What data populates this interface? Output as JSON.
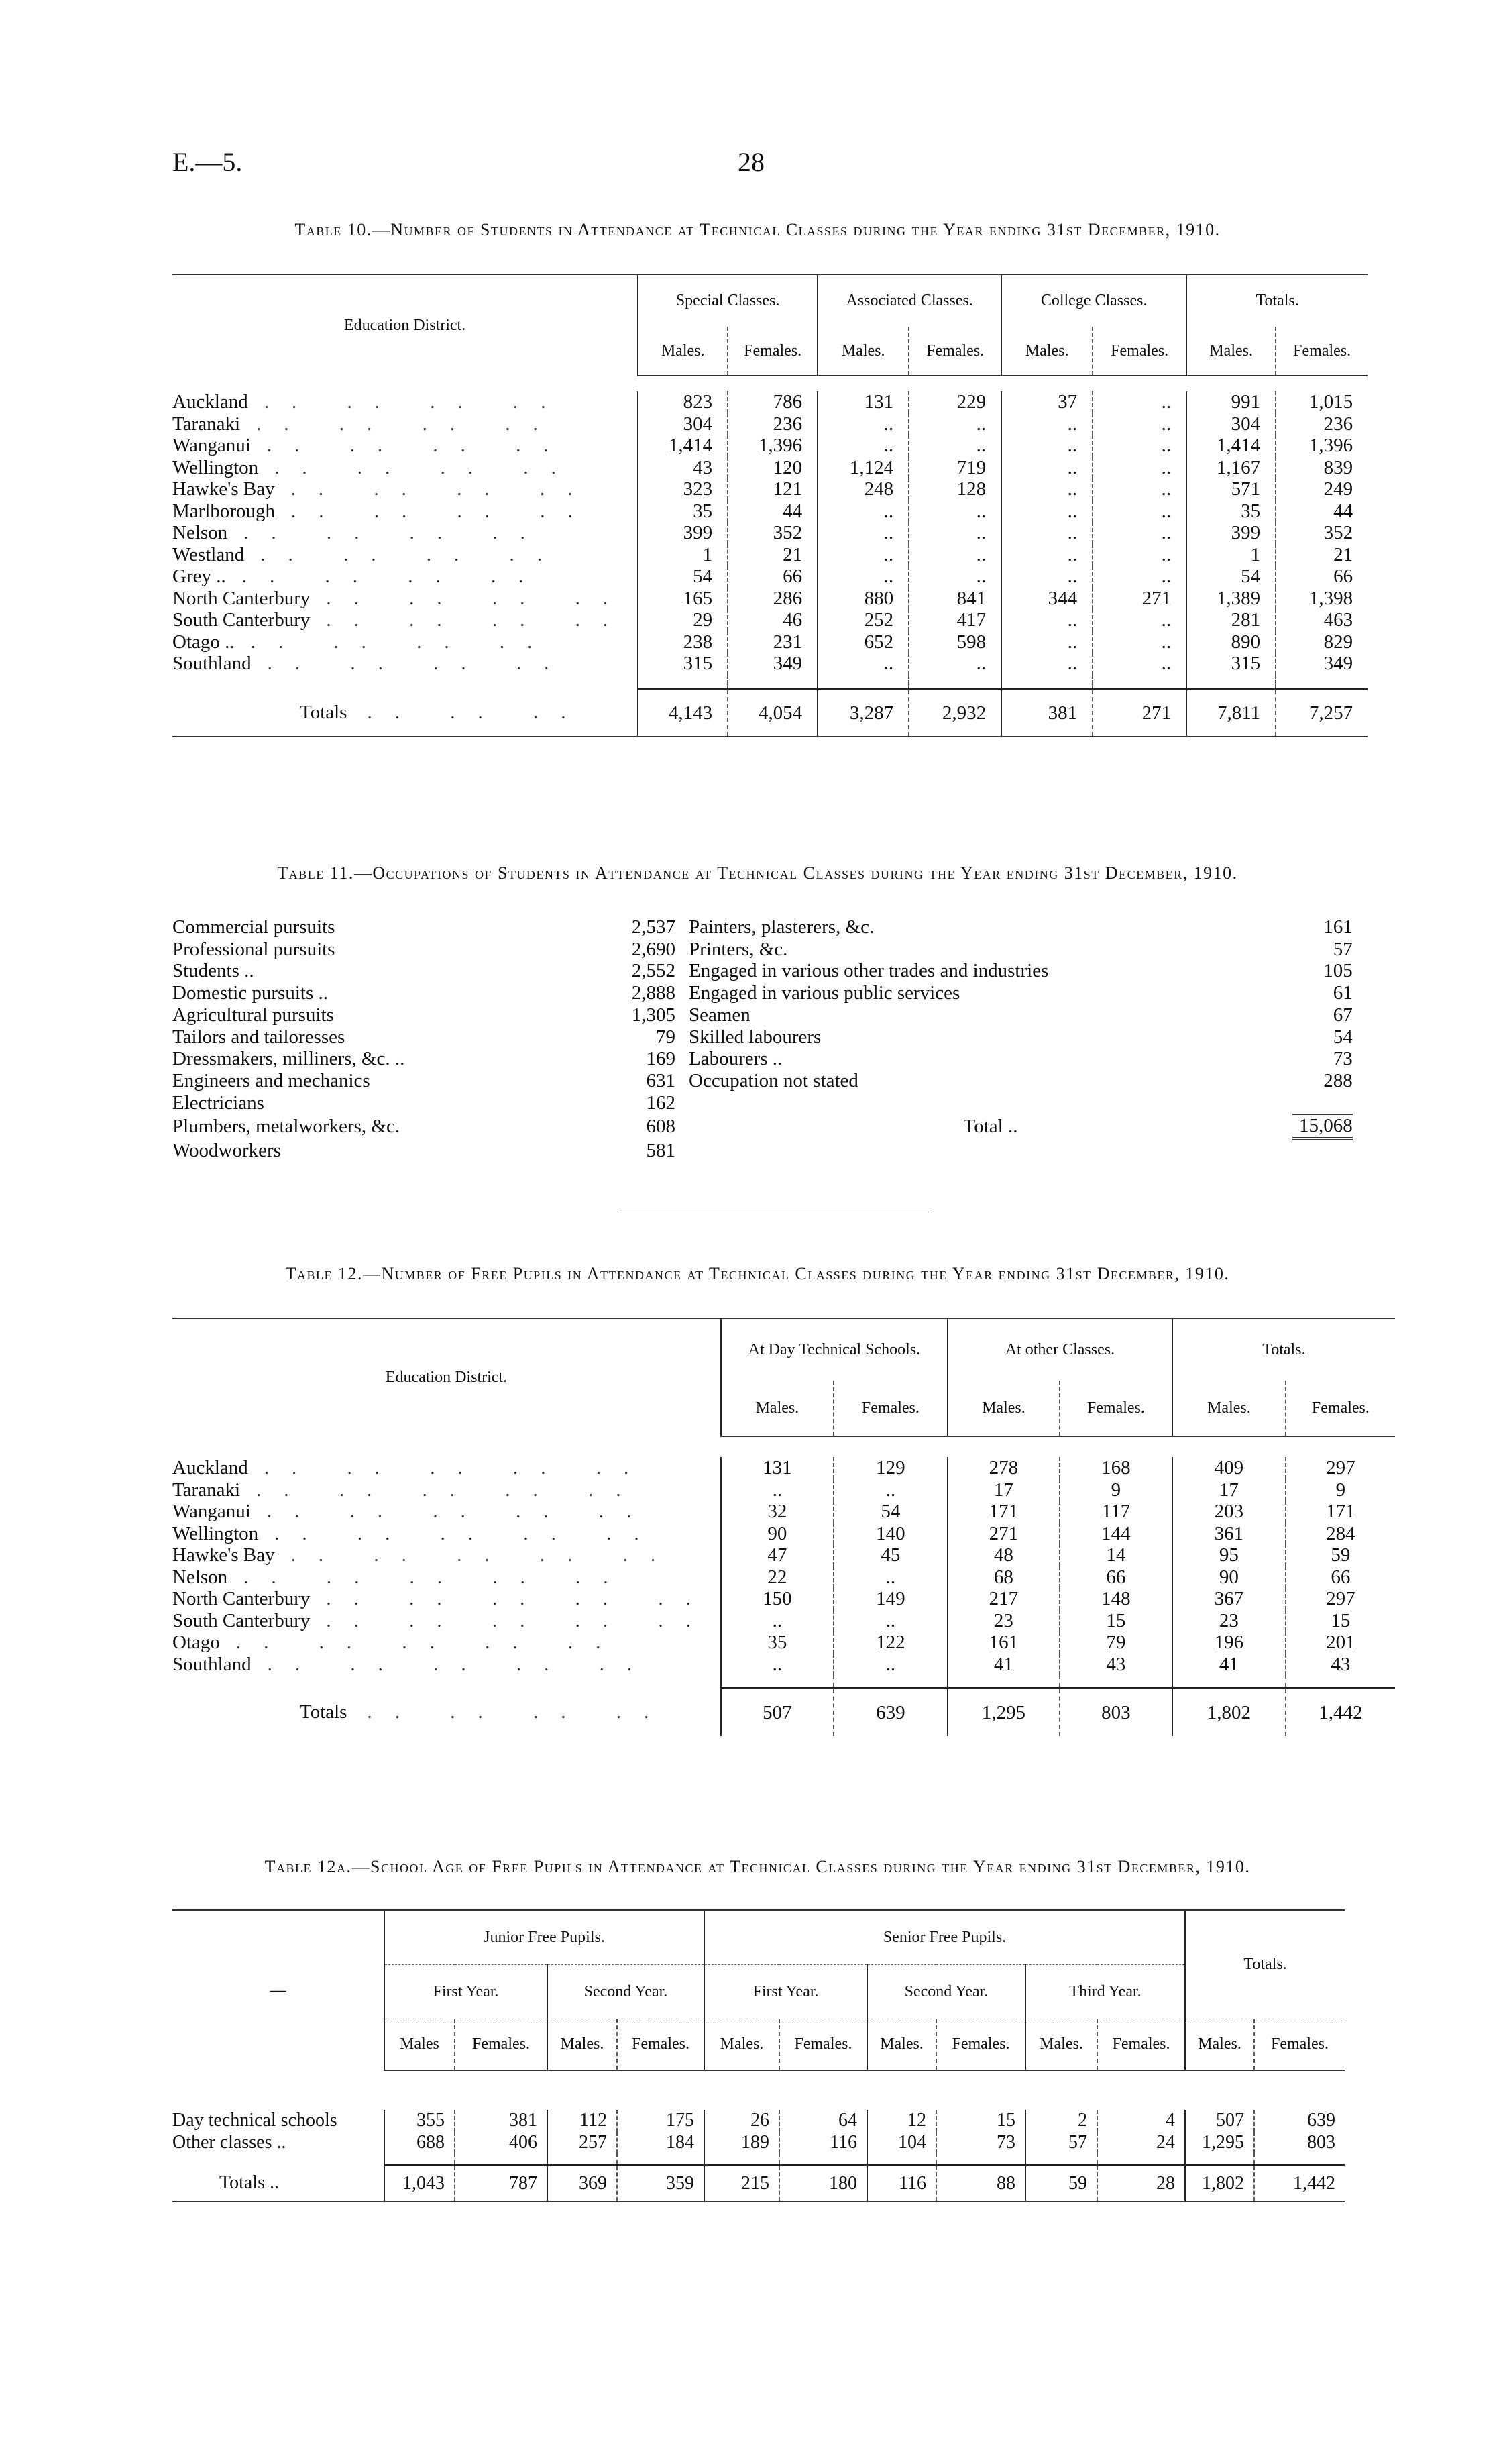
{
  "page": {
    "ref": "E.—5.",
    "number": "28"
  },
  "table10": {
    "title": "Table 10.—Number of Students in Attendance at Technical Classes during the Year ending 31st December, 1910.",
    "stub": "Education District.",
    "groups": [
      "Special Classes.",
      "Associated Classes.",
      "College Classes.",
      "Totals."
    ],
    "sub": [
      "Males.",
      "Females."
    ],
    "leader": ".. .. .. ..",
    "rows": [
      {
        "label": "Auckland",
        "values": [
          "823",
          "786",
          "131",
          "229",
          "37",
          "..",
          "991",
          "1,015"
        ]
      },
      {
        "label": "Taranaki",
        "values": [
          "304",
          "236",
          "..",
          "..",
          "..",
          "..",
          "304",
          "236"
        ]
      },
      {
        "label": "Wanganui",
        "values": [
          "1,414",
          "1,396",
          "..",
          "..",
          "..",
          "..",
          "1,414",
          "1,396"
        ]
      },
      {
        "label": "Wellington",
        "values": [
          "43",
          "120",
          "1,124",
          "719",
          "..",
          "..",
          "1,167",
          "839"
        ]
      },
      {
        "label": "Hawke's Bay",
        "values": [
          "323",
          "121",
          "248",
          "128",
          "..",
          "..",
          "571",
          "249"
        ]
      },
      {
        "label": "Marlborough",
        "values": [
          "35",
          "44",
          "..",
          "..",
          "..",
          "..",
          "35",
          "44"
        ]
      },
      {
        "label": "Nelson",
        "values": [
          "399",
          "352",
          "..",
          "..",
          "..",
          "..",
          "399",
          "352"
        ]
      },
      {
        "label": "Westland",
        "values": [
          "1",
          "21",
          "..",
          "..",
          "..",
          "..",
          "1",
          "21"
        ]
      },
      {
        "label": "Grey ..",
        "values": [
          "54",
          "66",
          "..",
          "..",
          "..",
          "..",
          "54",
          "66"
        ]
      },
      {
        "label": "North Canterbury",
        "values": [
          "165",
          "286",
          "880",
          "841",
          "344",
          "271",
          "1,389",
          "1,398"
        ]
      },
      {
        "label": "South Canterbury",
        "values": [
          "29",
          "46",
          "252",
          "417",
          "..",
          "..",
          "281",
          "463"
        ]
      },
      {
        "label": "Otago ..",
        "values": [
          "238",
          "231",
          "652",
          "598",
          "..",
          "..",
          "890",
          "829"
        ]
      },
      {
        "label": "Southland",
        "values": [
          "315",
          "349",
          "..",
          "..",
          "..",
          "..",
          "315",
          "349"
        ]
      }
    ],
    "totals": {
      "label": "Totals",
      "leader": ".. .. ..",
      "values": [
        "4,143",
        "4,054",
        "3,287",
        "2,932",
        "381",
        "271",
        "7,811",
        "7,257"
      ]
    }
  },
  "table11": {
    "title": "Table 11.—Occupations of Students in Attendance at Technical Classes during the Year ending 31st December, 1910.",
    "leader": ".. .. ..",
    "left": [
      {
        "label": "Commercial pursuits",
        "value": "2,537"
      },
      {
        "label": "Professional pursuits",
        "value": "2,690"
      },
      {
        "label": "Students ..",
        "value": "2,552"
      },
      {
        "label": "Domestic pursuits ..",
        "value": "2,888"
      },
      {
        "label": "Agricultural pursuits",
        "value": "1,305"
      },
      {
        "label": "Tailors and tailoresses",
        "value": "79"
      },
      {
        "label": "Dressmakers, milliners, &c. ..",
        "value": "169"
      },
      {
        "label": "Engineers and mechanics",
        "value": "631"
      },
      {
        "label": "Electricians",
        "value": "162"
      },
      {
        "label": "Plumbers, metalworkers, &c.",
        "value": "608"
      },
      {
        "label": "Woodworkers",
        "value": "581"
      }
    ],
    "right": [
      {
        "label": "Painters, plasterers, &c.",
        "value": "161"
      },
      {
        "label": "Printers, &c.",
        "value": "57"
      },
      {
        "label": "Engaged in various other trades and industries",
        "value": "105"
      },
      {
        "label": "Engaged in various public services",
        "value": "61"
      },
      {
        "label": "Seamen",
        "value": "67"
      },
      {
        "label": "Skilled labourers",
        "value": "54"
      },
      {
        "label": "Labourers ..",
        "value": "73"
      },
      {
        "label": "Occupation not stated",
        "value": "288"
      }
    ],
    "total": {
      "label": "Total ..",
      "value": "15,068"
    }
  },
  "table12": {
    "title": "Table 12.—Number of Free Pupils in Attendance at Technical Classes during the Year ending 31st December, 1910.",
    "stub": "Education District.",
    "groups": [
      "At Day Technical Schools.",
      "At other Classes.",
      "Totals."
    ],
    "sub": [
      "Males.",
      "Females."
    ],
    "leader": ".. .. .. .. ..",
    "rows": [
      {
        "label": "Auckland",
        "values": [
          "131",
          "129",
          "278",
          "168",
          "409",
          "297"
        ]
      },
      {
        "label": "Taranaki",
        "values": [
          "..",
          "..",
          "17",
          "9",
          "17",
          "9"
        ]
      },
      {
        "label": "Wanganui",
        "values": [
          "32",
          "54",
          "171",
          "117",
          "203",
          "171"
        ]
      },
      {
        "label": "Wellington",
        "values": [
          "90",
          "140",
          "271",
          "144",
          "361",
          "284"
        ]
      },
      {
        "label": "Hawke's Bay",
        "values": [
          "47",
          "45",
          "48",
          "14",
          "95",
          "59"
        ]
      },
      {
        "label": "Nelson",
        "values": [
          "22",
          "..",
          "68",
          "66",
          "90",
          "66"
        ]
      },
      {
        "label": "North Canterbury",
        "values": [
          "150",
          "149",
          "217",
          "148",
          "367",
          "297"
        ]
      },
      {
        "label": "South Canterbury",
        "values": [
          "..",
          "..",
          "23",
          "15",
          "23",
          "15"
        ]
      },
      {
        "label": "Otago",
        "values": [
          "35",
          "122",
          "161",
          "79",
          "196",
          "201"
        ]
      },
      {
        "label": "Southland",
        "values": [
          "..",
          "..",
          "41",
          "43",
          "41",
          "43"
        ]
      }
    ],
    "totals": {
      "label": "Totals",
      "leader": ".. .. .. ..",
      "values": [
        "507",
        "639",
        "1,295",
        "803",
        "1,802",
        "1,442"
      ]
    }
  },
  "table12a": {
    "title": "Table 12a.—School Age of Free Pupils in Attendance at Technical Classes during the Year ending 31st December, 1910.",
    "stub": "—",
    "groups": [
      "Junior Free Pupils.",
      "Senior Free Pupils.",
      "Totals."
    ],
    "years": [
      "First Year.",
      "Second Year.",
      "First Year.",
      "Second Year.",
      "Third Year."
    ],
    "sub": [
      "Males",
      "Females.",
      "Males.",
      "Females.",
      "Males.",
      "Females.",
      "Males.",
      "Females.",
      "Males.",
      "Females.",
      "Males.",
      "Females."
    ],
    "rows": [
      {
        "label": "Day technical schools",
        "values": [
          "355",
          "381",
          "112",
          "175",
          "26",
          "64",
          "12",
          "15",
          "2",
          "4",
          "507",
          "639"
        ]
      },
      {
        "label": "Other classes ..",
        "values": [
          "688",
          "406",
          "257",
          "184",
          "189",
          "116",
          "104",
          "73",
          "57",
          "24",
          "1,295",
          "803"
        ]
      }
    ],
    "totals": {
      "label": "Totals ..",
      "values": [
        "1,043",
        "787",
        "369",
        "359",
        "215",
        "180",
        "116",
        "88",
        "59",
        "28",
        "1,802",
        "1,442"
      ]
    }
  }
}
